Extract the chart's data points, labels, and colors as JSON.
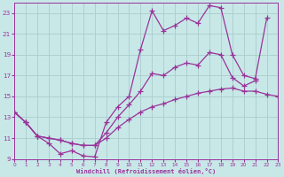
{
  "background_color": "#c8e8e8",
  "grid_color": "#aacccc",
  "line_color": "#993399",
  "xlabel": "Windchill (Refroidissement éolien,°C)",
  "xlim": [
    0,
    23
  ],
  "ylim": [
    9,
    24
  ],
  "yticks": [
    9,
    11,
    13,
    15,
    17,
    19,
    21,
    23
  ],
  "xticks": [
    0,
    1,
    2,
    3,
    4,
    5,
    6,
    7,
    8,
    9,
    10,
    11,
    12,
    13,
    14,
    15,
    16,
    17,
    18,
    19,
    20,
    21,
    22,
    23
  ],
  "series1_x": [
    0,
    1,
    2,
    3,
    4,
    5,
    6,
    7,
    8,
    9,
    10,
    11,
    12,
    13,
    14,
    15,
    16,
    17,
    18,
    19,
    20,
    21,
    22
  ],
  "series1_y": [
    13.5,
    12.5,
    11.2,
    10.5,
    9.5,
    9.8,
    9.3,
    9.2,
    12.5,
    14.0,
    15.0,
    19.5,
    23.2,
    21.3,
    21.8,
    22.5,
    22.0,
    23.7,
    23.5,
    19.0,
    17.0,
    16.7,
    22.5
  ],
  "series2_x": [
    0,
    1,
    2,
    3,
    4,
    5,
    6,
    7,
    8,
    9,
    10,
    11,
    12,
    13,
    14,
    15,
    16,
    17,
    18,
    19,
    20,
    21
  ],
  "series2_y": [
    13.5,
    12.5,
    11.2,
    11.0,
    10.8,
    10.5,
    10.3,
    10.3,
    11.5,
    13.0,
    14.2,
    15.5,
    17.2,
    17.0,
    17.8,
    18.2,
    18.0,
    19.2,
    19.0,
    16.8,
    16.0,
    16.5
  ],
  "series3_x": [
    0,
    1,
    2,
    3,
    4,
    5,
    6,
    7,
    8,
    9,
    10,
    11,
    12,
    13,
    14,
    15,
    16,
    17,
    18,
    19,
    20,
    21,
    22,
    23
  ],
  "series3_y": [
    13.5,
    12.5,
    11.2,
    11.0,
    10.8,
    10.5,
    10.3,
    10.3,
    11.0,
    12.0,
    12.8,
    13.5,
    14.0,
    14.3,
    14.7,
    15.0,
    15.3,
    15.5,
    15.7,
    15.8,
    15.5,
    15.5,
    15.2,
    15.0
  ]
}
